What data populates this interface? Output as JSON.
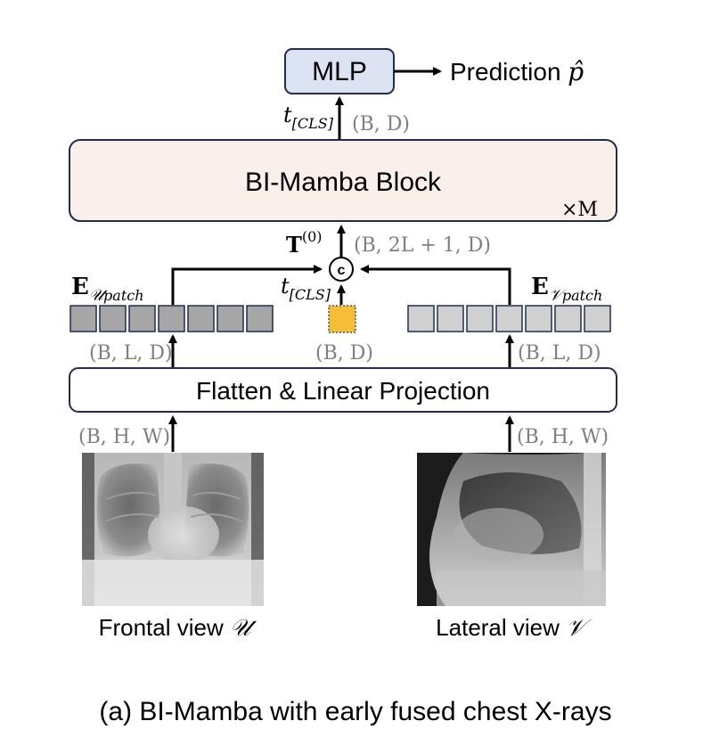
{
  "mlp": {
    "label": "MLP",
    "output": "Prediction",
    "output_symbol": "p̂"
  },
  "mamba": {
    "label": "BI-Mamba Block",
    "repeat": "×M"
  },
  "flatten": {
    "label": "Flatten & Linear Projection"
  },
  "concat": {
    "symbol": "c"
  },
  "tokens": {
    "cls": "t",
    "cls_sub": "[CLS]",
    "t0": "T",
    "t0_sup": "(0)"
  },
  "embeddings": {
    "frontal": {
      "base": "E",
      "sub_script": "𝒰",
      "sub_text": "patch",
      "cells": 7,
      "color": "#a6a6a6"
    },
    "lateral": {
      "base": "E",
      "sub_script": "𝒱",
      "sub_text": "patch",
      "cells": 7,
      "color": "#d0d0d0"
    },
    "cls_color": "#f4be3a"
  },
  "shapes": {
    "mlp_out": "(B, D)",
    "mamba_in": "(B, 2L + 1, D)",
    "cls": "(B, D)",
    "frontal_emb": "(B, L, D)",
    "lateral_emb": "(B, L, D)",
    "frontal_in": "(B, H, W)",
    "lateral_in": "(B, H, W)"
  },
  "views": {
    "frontal": {
      "label": "Frontal view",
      "symbol": "𝒰"
    },
    "lateral": {
      "label": "Lateral view",
      "symbol": "𝒱"
    }
  },
  "caption": "(a) BI-Mamba with early fused chest X-rays",
  "colors": {
    "mlp_fill": "#dce3f2",
    "mamba_fill": "#fbefe9",
    "stroke": "#1f2d4f",
    "dim_text": "#7f7f7f"
  }
}
